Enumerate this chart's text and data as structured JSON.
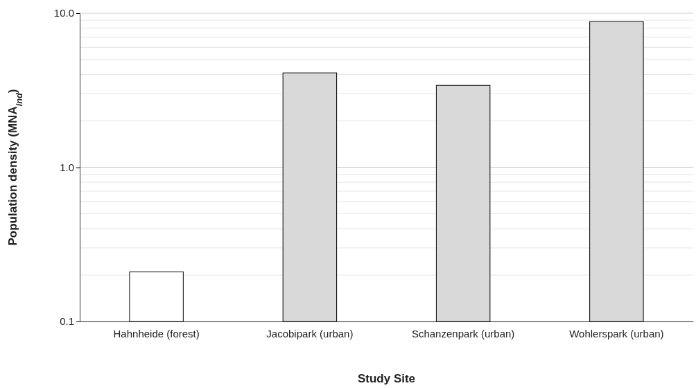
{
  "chart_data": {
    "type": "bar",
    "xlabel": "Study Site",
    "ylabel": "Population density (MNA$_{ind}$)",
    "categories": [
      "Hahnheide (forest)",
      "Jacobipark (urban)",
      "Schanzenpark (urban)",
      "Wohlerspark (urban)"
    ],
    "values": [
      0.21,
      4.1,
      3.4,
      8.8
    ],
    "colors": [
      "#ffffff",
      "#d9d9d9",
      "#d9d9d9",
      "#d9d9d9"
    ],
    "log": true,
    "ylim": [
      0.1,
      10
    ],
    "yticks": [
      0.1,
      {
        "value": 1,
        "label": "1.0"
      },
      {
        "value": 10,
        "label": "10.0"
      }
    ],
    "grid": "y"
  }
}
